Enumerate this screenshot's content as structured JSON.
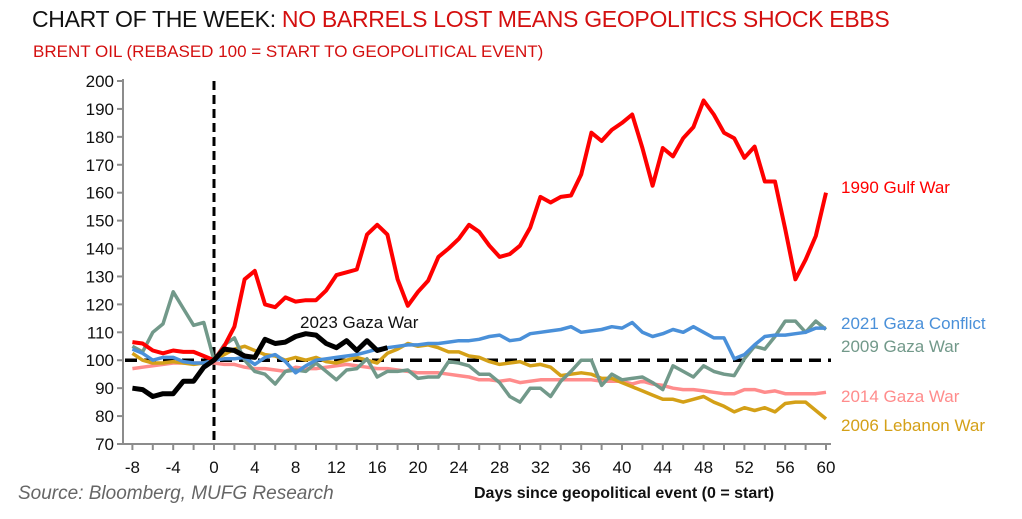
{
  "header": {
    "title_prefix": "CHART OF THE WEEK: ",
    "title_highlight": "NO BARRELS LOST MEANS GEOPOLITICS SHOCK EBBS",
    "subtitle": "BRENT OIL (REBASED 100 = START TO GEOPOLITICAL EVENT)"
  },
  "footer": {
    "source": "Source: Bloomberg, MUFG Research"
  },
  "chart_data": {
    "type": "line",
    "title": "NO BARRELS LOST MEANS GEOPOLITICS SHOCK EBBS",
    "subtitle": "BRENT OIL (REBASED 100 = START TO GEOPOLITICAL EVENT)",
    "xlabel": "Days since geopolitical event (0 = start)",
    "ylabel": "",
    "xlim": [
      -8,
      60
    ],
    "ylim": [
      70,
      200
    ],
    "xticks": [
      -8,
      -4,
      0,
      4,
      8,
      12,
      16,
      20,
      24,
      28,
      32,
      36,
      40,
      44,
      48,
      52,
      56,
      60
    ],
    "yticks": [
      70,
      80,
      90,
      100,
      110,
      120,
      130,
      140,
      150,
      160,
      170,
      180,
      190,
      200
    ],
    "grid": false,
    "reference_lines": [
      {
        "orientation": "vertical",
        "x": 0,
        "style": "dashed"
      },
      {
        "orientation": "horizontal",
        "y": 100,
        "style": "dashed"
      }
    ],
    "series": [
      {
        "name": "1990 Gulf War",
        "color": "#ff0000",
        "x": [
          -8,
          -7,
          -6,
          -5,
          -4,
          -3,
          -2,
          -1,
          0,
          1,
          2,
          3,
          4,
          5,
          6,
          7,
          8,
          9,
          10,
          11,
          12,
          13,
          14,
          15,
          16,
          17,
          18,
          19,
          20,
          21,
          22,
          23,
          24,
          25,
          26,
          27,
          28,
          29,
          30,
          31,
          32,
          33,
          34,
          35,
          36,
          37,
          38,
          39,
          40,
          41,
          42,
          43,
          44,
          45,
          46,
          47,
          48,
          49,
          50,
          51,
          52,
          53,
          54,
          55,
          56,
          57,
          58,
          59,
          60
        ],
        "values": [
          106.5,
          106,
          103.5,
          102.5,
          103.5,
          103,
          103,
          101.5,
          100,
          105,
          112,
          129,
          132,
          120,
          119,
          122.5,
          121,
          121.5,
          121.5,
          125,
          130.5,
          131.5,
          132.5,
          145,
          148.5,
          145,
          129,
          119.5,
          124.5,
          128.5,
          137,
          140,
          143.5,
          148.5,
          146,
          141,
          137,
          138,
          141,
          147.5,
          158.5,
          156.5,
          158.5,
          159,
          166.5,
          181.5,
          178.5,
          182.5,
          185,
          188,
          176,
          162.5,
          176,
          173,
          179.5,
          183.5,
          193,
          188,
          181.5,
          179.5,
          172.5,
          176.5,
          164,
          164,
          147,
          129,
          136,
          144.5,
          160
        ]
      },
      {
        "name": "2023 Gaza War",
        "color": "#000000",
        "x": [
          -8,
          -7,
          -6,
          -5,
          -4,
          -3,
          -2,
          -1,
          0,
          1,
          2,
          3,
          4,
          5,
          6,
          7,
          8,
          9,
          10,
          11,
          12,
          13,
          14,
          15,
          16,
          17
        ],
        "values": [
          90,
          89.5,
          87,
          88,
          88,
          92.5,
          92.5,
          97.5,
          100,
          104,
          103.5,
          101.5,
          101,
          107.5,
          106,
          106.5,
          108.5,
          109.5,
          109,
          106,
          104.5,
          107,
          103.5,
          107,
          103.5,
          104.5
        ]
      },
      {
        "name": "2021 Gaza Conflict",
        "color": "#4a90d9",
        "x": [
          -8,
          -7,
          -6,
          -5,
          -4,
          -3,
          -2,
          -1,
          0,
          1,
          2,
          3,
          4,
          5,
          6,
          7,
          8,
          9,
          10,
          11,
          12,
          13,
          14,
          15,
          16,
          17,
          18,
          19,
          20,
          21,
          22,
          23,
          24,
          25,
          26,
          27,
          28,
          29,
          30,
          31,
          32,
          33,
          34,
          35,
          36,
          37,
          38,
          39,
          40,
          41,
          42,
          43,
          44,
          45,
          46,
          47,
          48,
          49,
          50,
          51,
          52,
          53,
          54,
          55,
          56,
          57,
          58,
          59,
          60
        ],
        "values": [
          104,
          102.5,
          100,
          101,
          101,
          99.5,
          99,
          99,
          100,
          100.5,
          100.5,
          101,
          98.5,
          101,
          102,
          99.5,
          95.5,
          98,
          100,
          100.5,
          101,
          101.5,
          102,
          103,
          104,
          104.5,
          105,
          105.5,
          105.5,
          106,
          106,
          106.5,
          107,
          107,
          107.5,
          108.5,
          109,
          107,
          107.5,
          109.5,
          110,
          110.5,
          111,
          112,
          110,
          110.5,
          111,
          112,
          111.5,
          113.5,
          110,
          108.5,
          109.5,
          111,
          110,
          112,
          110,
          108,
          108,
          100.5,
          102,
          105.5,
          108.5,
          109,
          109,
          109.5,
          110,
          111.5,
          111.5
        ]
      },
      {
        "name": "2009 Gaza War",
        "color": "#72998a",
        "x": [
          -8,
          -7,
          -6,
          -5,
          -4,
          -3,
          -2,
          -1,
          0,
          1,
          2,
          3,
          4,
          5,
          6,
          7,
          8,
          9,
          10,
          11,
          12,
          13,
          14,
          15,
          16,
          17,
          18,
          19,
          20,
          21,
          22,
          23,
          24,
          25,
          26,
          27,
          28,
          29,
          30,
          31,
          32,
          33,
          34,
          35,
          36,
          37,
          38,
          39,
          40,
          41,
          42,
          43,
          44,
          45,
          46,
          47,
          48,
          49,
          50,
          51,
          52,
          53,
          54,
          55,
          56,
          57,
          58,
          59,
          60
        ],
        "values": [
          105,
          103,
          110,
          113,
          124.5,
          118.5,
          112.5,
          113.5,
          100,
          105.5,
          108,
          100,
          96,
          95,
          91.5,
          96,
          96.5,
          96,
          99,
          96,
          93,
          96.5,
          97,
          100.5,
          94,
          96,
          96,
          96.5,
          93.5,
          94,
          94,
          99.5,
          99,
          98,
          95,
          95,
          92,
          87,
          85,
          90,
          90,
          87,
          92.5,
          96,
          100,
          100,
          91,
          95,
          93,
          93.5,
          94,
          92,
          89.5,
          98,
          96,
          94,
          98,
          96,
          95,
          94.5,
          100.5,
          105,
          104,
          108.5,
          114,
          114,
          110,
          114,
          111
        ]
      },
      {
        "name": "2014 Gaza War",
        "color": "#ff8c8c",
        "x": [
          -8,
          -7,
          -6,
          -5,
          -4,
          -3,
          -2,
          -1,
          0,
          1,
          2,
          3,
          4,
          5,
          6,
          7,
          8,
          9,
          10,
          11,
          12,
          13,
          14,
          15,
          16,
          17,
          18,
          19,
          20,
          21,
          22,
          23,
          24,
          25,
          26,
          27,
          28,
          29,
          30,
          31,
          32,
          33,
          34,
          35,
          36,
          37,
          38,
          39,
          40,
          41,
          42,
          43,
          44,
          45,
          46,
          47,
          48,
          49,
          50,
          51,
          52,
          53,
          54,
          55,
          56,
          57,
          58,
          59,
          60
        ],
        "values": [
          97,
          97.5,
          98,
          98.5,
          99,
          99,
          99,
          99,
          99,
          98.5,
          98.5,
          97.5,
          97,
          97,
          96.5,
          96,
          97.5,
          97,
          97,
          97.5,
          98,
          98.5,
          98,
          97.5,
          97,
          97,
          96.5,
          96,
          95.5,
          95.5,
          95.5,
          95,
          94.5,
          94,
          93,
          93,
          92.5,
          93,
          92,
          92.5,
          93,
          93,
          93,
          93,
          93,
          93,
          92.5,
          92.5,
          92.5,
          91.5,
          92.5,
          91.5,
          91,
          90,
          89.5,
          89.5,
          89,
          88.5,
          88,
          88,
          89.5,
          89.5,
          88.5,
          89,
          88,
          88,
          88,
          88,
          88.5
        ]
      },
      {
        "name": "2006 Lebanon War",
        "color": "#d4a017",
        "x": [
          -8,
          -7,
          -6,
          -5,
          -4,
          -3,
          -2,
          -1,
          0,
          1,
          2,
          3,
          4,
          5,
          6,
          7,
          8,
          9,
          10,
          11,
          12,
          13,
          14,
          15,
          16,
          17,
          18,
          19,
          20,
          21,
          22,
          23,
          24,
          25,
          26,
          27,
          28,
          29,
          30,
          31,
          32,
          33,
          34,
          35,
          36,
          37,
          38,
          39,
          40,
          41,
          42,
          43,
          44,
          45,
          46,
          47,
          48,
          49,
          50,
          51,
          52,
          53,
          54,
          55,
          56,
          57,
          58,
          59,
          60
        ],
        "values": [
          102.5,
          100,
          99,
          99,
          99.5,
          99,
          98.5,
          99,
          100,
          102,
          104,
          105,
          103.5,
          102,
          101.5,
          100,
          101,
          100,
          101,
          99.5,
          99,
          100,
          101,
          100,
          99,
          102.5,
          104,
          106,
          105,
          105.5,
          104.5,
          103,
          103,
          101.5,
          101,
          99.5,
          98.5,
          99,
          99.5,
          98,
          98.5,
          97.5,
          94.5,
          95,
          95.5,
          95,
          93.5,
          93.5,
          92,
          90.5,
          89,
          87.5,
          86,
          86,
          85,
          86,
          87,
          85,
          83.5,
          81.5,
          83,
          82,
          83,
          81.5,
          84.5,
          85,
          85,
          82,
          79
        ]
      }
    ],
    "annotations": [
      {
        "text": "2023 Gaza War",
        "series": "2023 Gaza War"
      }
    ]
  }
}
